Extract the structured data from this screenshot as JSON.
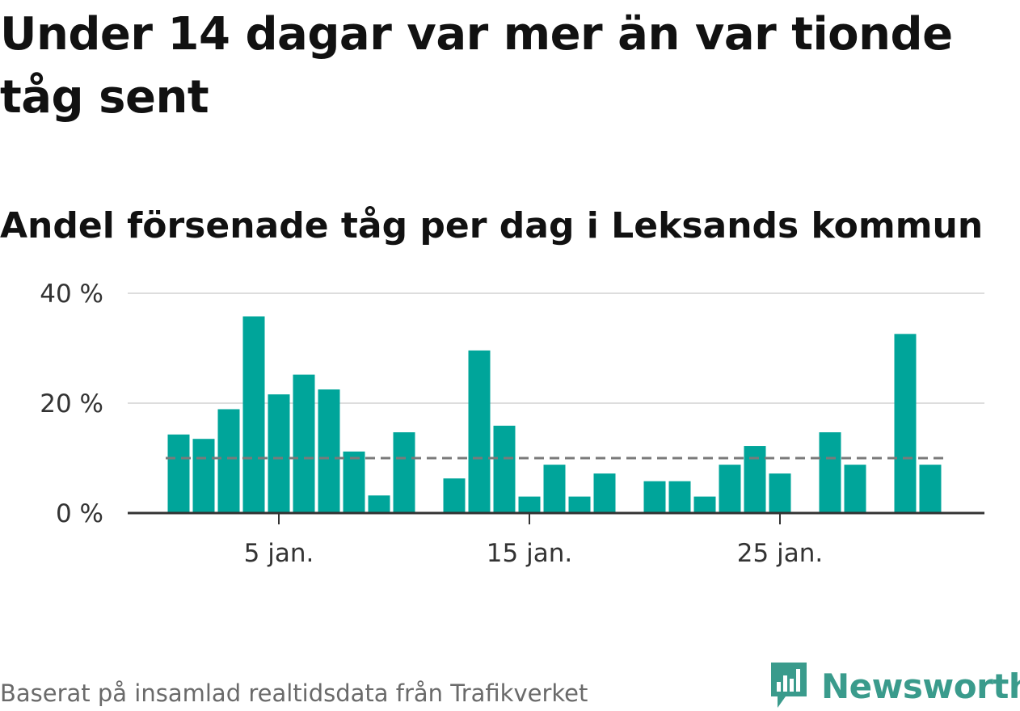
{
  "title": "Under 14 dagar var mer än var tionde tåg sent",
  "subtitle": "Andel försenade tåg per dag i Leksands kommun",
  "source": "Baserat på insamlad realtidsdata från Trafikverket",
  "brand": {
    "name": "Newsworthy",
    "icon": "newsworthy-logo-icon",
    "color": "#3a9b8c"
  },
  "colors": {
    "bar": "#00a59a",
    "reference_line": "#7a7a7a",
    "grid": "#dddddd",
    "axis": "#333333"
  },
  "chart_data": {
    "type": "bar",
    "title": "Andel försenade tåg per dag i Leksands kommun",
    "xlabel": "",
    "ylabel": "",
    "x_unit": "day of January",
    "x": [
      1,
      2,
      3,
      4,
      5,
      6,
      7,
      8,
      9,
      10,
      12,
      13,
      14,
      15,
      16,
      17,
      18,
      20,
      21,
      22,
      23,
      24,
      25,
      27,
      28,
      30,
      31
    ],
    "values": [
      14.3,
      13.5,
      18.9,
      35.8,
      21.6,
      25.2,
      22.5,
      11.2,
      3.2,
      14.7,
      6.3,
      29.6,
      15.9,
      3.0,
      8.8,
      3.0,
      7.2,
      5.8,
      5.8,
      3.0,
      8.8,
      12.2,
      7.2,
      14.7,
      8.8,
      32.6,
      8.8
    ],
    "x_ticks": [
      {
        "day": 5,
        "label": "5 jan."
      },
      {
        "day": 15,
        "label": "15 jan."
      },
      {
        "day": 25,
        "label": "25 jan."
      }
    ],
    "y_ticks": [
      {
        "value": 0,
        "label": "0 %"
      },
      {
        "value": 20,
        "label": "20 %"
      },
      {
        "value": 40,
        "label": "40 %"
      }
    ],
    "ylim": [
      0,
      40
    ],
    "xlim": [
      0,
      32
    ],
    "reference_line": {
      "value": 10,
      "style": "dashed"
    },
    "grid": true,
    "legend": "none"
  }
}
